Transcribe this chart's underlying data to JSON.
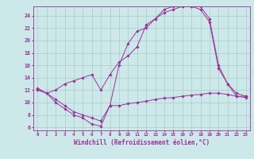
{
  "background_color": "#cce8e8",
  "grid_color": "#aacccc",
  "line_color": "#993399",
  "marker_color": "#993399",
  "xlabel": "Windchill (Refroidissement éolien,°C)",
  "xlabel_fontsize": 5.5,
  "xtick_labels": [
    "0",
    "1",
    "2",
    "3",
    "4",
    "5",
    "6",
    "7",
    "8",
    "9",
    "10",
    "11",
    "12",
    "13",
    "14",
    "15",
    "16",
    "17",
    "18",
    "19",
    "20",
    "21",
    "22",
    "23"
  ],
  "ytick_values": [
    6,
    8,
    10,
    12,
    14,
    16,
    18,
    20,
    22,
    24
  ],
  "xlim": [
    -0.5,
    23.5
  ],
  "ylim": [
    5.5,
    25.5
  ],
  "line1_x": [
    0,
    1,
    2,
    3,
    4,
    5,
    6,
    7,
    8,
    9,
    10,
    11,
    12,
    13,
    14,
    15,
    16,
    17,
    18,
    19,
    20,
    21,
    22,
    23
  ],
  "line1_y": [
    12.2,
    11.5,
    10.0,
    9.0,
    8.0,
    7.5,
    6.5,
    6.2,
    9.5,
    9.5,
    9.8,
    10.0,
    10.2,
    10.5,
    10.7,
    10.8,
    11.0,
    11.2,
    11.3,
    11.5,
    11.5,
    11.3,
    11.0,
    11.0
  ],
  "line2_x": [
    0,
    1,
    2,
    3,
    4,
    5,
    6,
    7,
    8,
    9,
    10,
    11,
    12,
    13,
    14,
    15,
    16,
    17,
    18,
    19,
    20,
    21,
    22,
    23
  ],
  "line2_y": [
    12.3,
    11.5,
    12.0,
    13.0,
    13.5,
    14.0,
    14.5,
    12.0,
    14.5,
    16.5,
    17.5,
    19.0,
    22.5,
    23.5,
    25.0,
    25.5,
    25.5,
    25.5,
    25.0,
    23.0,
    15.5,
    13.0,
    11.0,
    10.8
  ],
  "line3_x": [
    0,
    1,
    2,
    3,
    4,
    5,
    6,
    7,
    8,
    9,
    10,
    11,
    12,
    13,
    14,
    15,
    16,
    17,
    18,
    19,
    20,
    21,
    22,
    23
  ],
  "line3_y": [
    12.0,
    11.5,
    10.5,
    9.5,
    8.5,
    8.0,
    7.5,
    7.0,
    9.5,
    16.0,
    19.5,
    21.5,
    22.0,
    23.5,
    24.5,
    25.0,
    25.5,
    25.5,
    25.5,
    23.5,
    16.0,
    13.0,
    11.5,
    11.0
  ]
}
